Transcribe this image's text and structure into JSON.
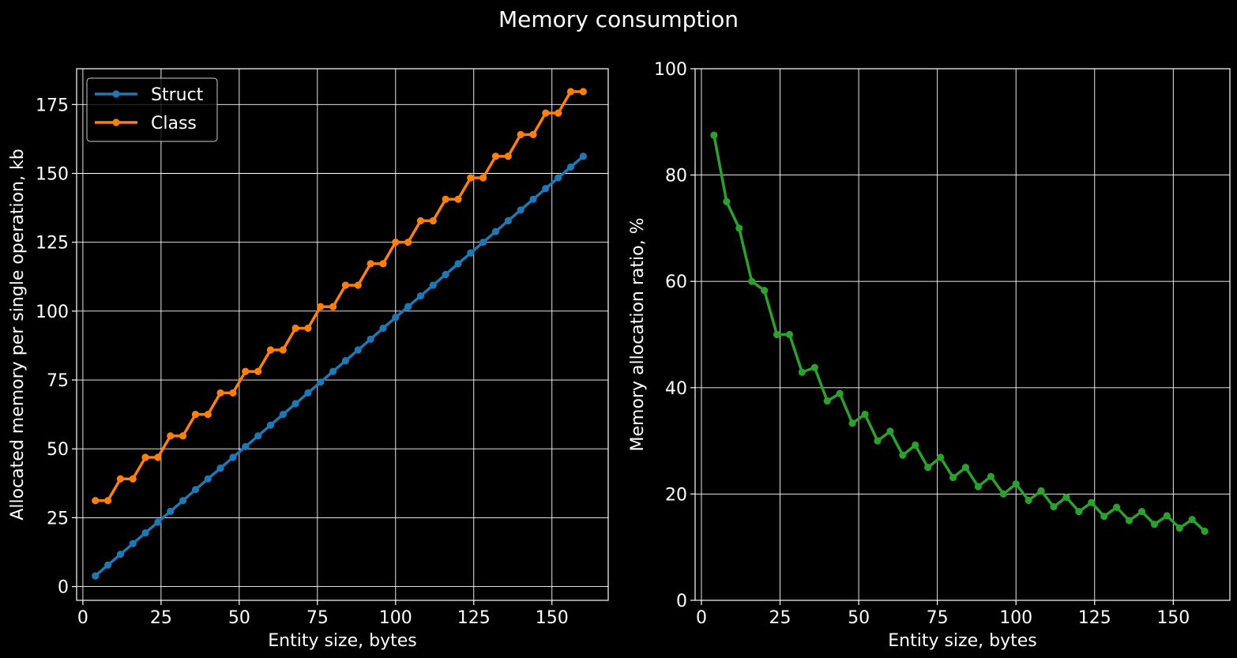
{
  "figure": {
    "title": "Memory consumption",
    "background": "#000000"
  },
  "chart_data": [
    {
      "type": "line",
      "xlabel": "Entity size, bytes",
      "ylabel": "Allocated memory per single operation, kb",
      "xlim": [
        -2,
        168
      ],
      "ylim": [
        -5,
        188
      ],
      "xticks": [
        0,
        25,
        50,
        75,
        100,
        125,
        150
      ],
      "yticks": [
        0,
        25,
        50,
        75,
        100,
        125,
        150,
        175
      ],
      "grid": true,
      "legend": "top-left",
      "x": [
        4,
        8,
        12,
        16,
        20,
        24,
        28,
        32,
        36,
        40,
        44,
        48,
        52,
        56,
        60,
        64,
        68,
        72,
        76,
        80,
        84,
        88,
        92,
        96,
        100,
        104,
        108,
        112,
        116,
        120,
        124,
        128,
        132,
        136,
        140,
        144,
        148,
        152,
        156,
        160
      ],
      "series": [
        {
          "name": "Struct",
          "color": "#1f77b4",
          "values": [
            3.9,
            7.8,
            11.7,
            15.6,
            19.5,
            23.4,
            27.3,
            31.2,
            35.2,
            39.1,
            43.0,
            46.9,
            50.8,
            54.7,
            58.6,
            62.5,
            66.4,
            70.3,
            74.2,
            78.1,
            82.0,
            85.9,
            89.8,
            93.8,
            97.7,
            101.6,
            105.5,
            109.4,
            113.3,
            117.2,
            121.1,
            125.0,
            128.9,
            132.8,
            136.7,
            140.6,
            144.5,
            148.4,
            152.3,
            156.2
          ]
        },
        {
          "name": "Class",
          "color": "#ff7f0e",
          "values": [
            31.2,
            31.2,
            39.1,
            39.1,
            46.9,
            46.9,
            54.7,
            54.7,
            62.5,
            62.5,
            70.3,
            70.3,
            78.1,
            78.1,
            85.9,
            85.9,
            93.8,
            93.8,
            101.6,
            101.6,
            109.4,
            109.4,
            117.2,
            117.2,
            125.0,
            125.0,
            132.8,
            132.8,
            140.6,
            140.6,
            148.4,
            148.4,
            156.2,
            156.2,
            164.1,
            164.1,
            171.9,
            171.9,
            179.7,
            179.7
          ]
        }
      ]
    },
    {
      "type": "line",
      "xlabel": "Entity size, bytes",
      "ylabel": "Memory allocation ratio, %",
      "xlim": [
        -2,
        168
      ],
      "ylim": [
        0,
        100
      ],
      "xticks": [
        0,
        25,
        50,
        75,
        100,
        125,
        150
      ],
      "yticks": [
        0,
        20,
        40,
        60,
        80,
        100
      ],
      "grid": true,
      "x": [
        4,
        8,
        12,
        16,
        20,
        24,
        28,
        32,
        36,
        40,
        44,
        48,
        52,
        56,
        60,
        64,
        68,
        72,
        76,
        80,
        84,
        88,
        92,
        96,
        100,
        104,
        108,
        112,
        116,
        120,
        124,
        128,
        132,
        136,
        140,
        144,
        148,
        152,
        156,
        160
      ],
      "series": [
        {
          "color": "#2ca02c",
          "values": [
            87.5,
            75.0,
            70.0,
            60.0,
            58.3,
            50.0,
            50.0,
            42.9,
            43.8,
            37.5,
            38.9,
            33.3,
            35.0,
            30.0,
            31.8,
            27.3,
            29.2,
            25.0,
            26.9,
            23.1,
            25.0,
            21.4,
            23.3,
            20.0,
            21.9,
            18.8,
            20.6,
            17.6,
            19.4,
            16.7,
            18.4,
            15.8,
            17.5,
            15.0,
            16.7,
            14.3,
            15.9,
            13.6,
            15.2,
            13.0
          ]
        }
      ]
    }
  ]
}
